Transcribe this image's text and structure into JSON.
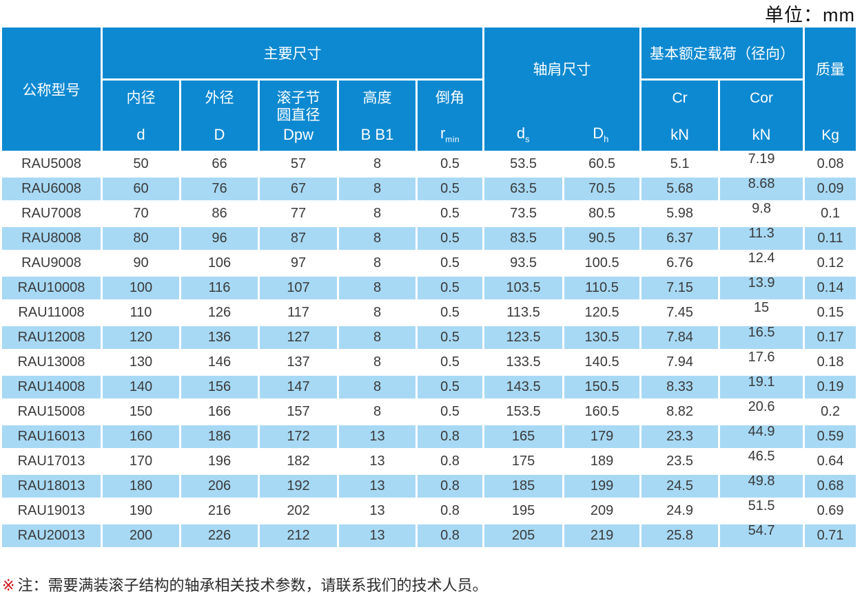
{
  "unit_label": "单位：mm",
  "colors": {
    "header_blue": "#0d89d1",
    "row_blue": "#a7d9f4",
    "note_red": "#cc1111",
    "text_dark": "#3a3a3a"
  },
  "table": {
    "header": {
      "model": "公称型号",
      "main_dims_group": "主要尺寸",
      "shoulder_group": "轴肩尺寸",
      "load_group": "基本额定载荷（径向）",
      "mass_group": "质量",
      "bore_label": "内径",
      "bore_symbol": "d",
      "od_label": "外径",
      "od_symbol": "D",
      "pitch_label": "滚子节\n圆直径",
      "pitch_symbol": "Dpw",
      "height_label": "高度",
      "height_symbol": "B B1",
      "chamfer_label": "倒角",
      "chamfer_symbol": "r",
      "chamfer_symbol_sub": "min",
      "ds_symbol": "d",
      "ds_sub": "s",
      "dh_symbol": "D",
      "dh_sub": "h",
      "cr_label": "Cr",
      "cr_unit": "kN",
      "cor_label": "Cor",
      "cor_unit": "kN",
      "mass_unit": "Kg"
    },
    "columns": [
      "model",
      "d",
      "D",
      "Dpw",
      "B-B1",
      "r-min",
      "ds",
      "Dh",
      "Cr",
      "Cor",
      "Kg"
    ],
    "rows": [
      [
        "RAU5008",
        "50",
        "66",
        "57",
        "8",
        "0.5",
        "53.5",
        "60.5",
        "5.1",
        "7.19",
        "0.08"
      ],
      [
        "RAU6008",
        "60",
        "76",
        "67",
        "8",
        "0.5",
        "63.5",
        "70.5",
        "5.68",
        "8.68",
        "0.09"
      ],
      [
        "RAU7008",
        "70",
        "86",
        "77",
        "8",
        "0.5",
        "73.5",
        "80.5",
        "5.98",
        "9.8",
        "0.1"
      ],
      [
        "RAU8008",
        "80",
        "96",
        "87",
        "8",
        "0.5",
        "83.5",
        "90.5",
        "6.37",
        "11.3",
        "0.11"
      ],
      [
        "RAU9008",
        "90",
        "106",
        "97",
        "8",
        "0.5",
        "93.5",
        "100.5",
        "6.76",
        "12.4",
        "0.12"
      ],
      [
        "RAU10008",
        "100",
        "116",
        "107",
        "8",
        "0.5",
        "103.5",
        "110.5",
        "7.15",
        "13.9",
        "0.14"
      ],
      [
        "RAU11008",
        "110",
        "126",
        "117",
        "8",
        "0.5",
        "113.5",
        "120.5",
        "7.45",
        "15",
        "0.15"
      ],
      [
        "RAU12008",
        "120",
        "136",
        "127",
        "8",
        "0.5",
        "123.5",
        "130.5",
        "7.84",
        "16.5",
        "0.17"
      ],
      [
        "RAU13008",
        "130",
        "146",
        "137",
        "8",
        "0.5",
        "133.5",
        "140.5",
        "7.94",
        "17.6",
        "0.18"
      ],
      [
        "RAU14008",
        "140",
        "156",
        "147",
        "8",
        "0.5",
        "143.5",
        "150.5",
        "8.33",
        "19.1",
        "0.19"
      ],
      [
        "RAU15008",
        "150",
        "166",
        "157",
        "8",
        "0.5",
        "153.5",
        "160.5",
        "8.82",
        "20.6",
        "0.2"
      ],
      [
        "RAU16013",
        "160",
        "186",
        "172",
        "13",
        "0.8",
        "165",
        "179",
        "23.3",
        "44.9",
        "0.59"
      ],
      [
        "RAU17013",
        "170",
        "196",
        "182",
        "13",
        "0.8",
        "175",
        "189",
        "23.5",
        "46.5",
        "0.64"
      ],
      [
        "RAU18013",
        "180",
        "206",
        "192",
        "13",
        "0.8",
        "185",
        "199",
        "24.5",
        "49.8",
        "0.68"
      ],
      [
        "RAU19013",
        "190",
        "216",
        "202",
        "13",
        "0.8",
        "195",
        "209",
        "24.9",
        "51.5",
        "0.69"
      ],
      [
        "RAU20013",
        "200",
        "226",
        "212",
        "13",
        "0.8",
        "205",
        "219",
        "25.8",
        "54.7",
        "0.71"
      ]
    ]
  },
  "note": {
    "marker": "※",
    "text": "注：需要满装滚子结构的轴承相关技术参数，请联系我们的技术人员。"
  }
}
